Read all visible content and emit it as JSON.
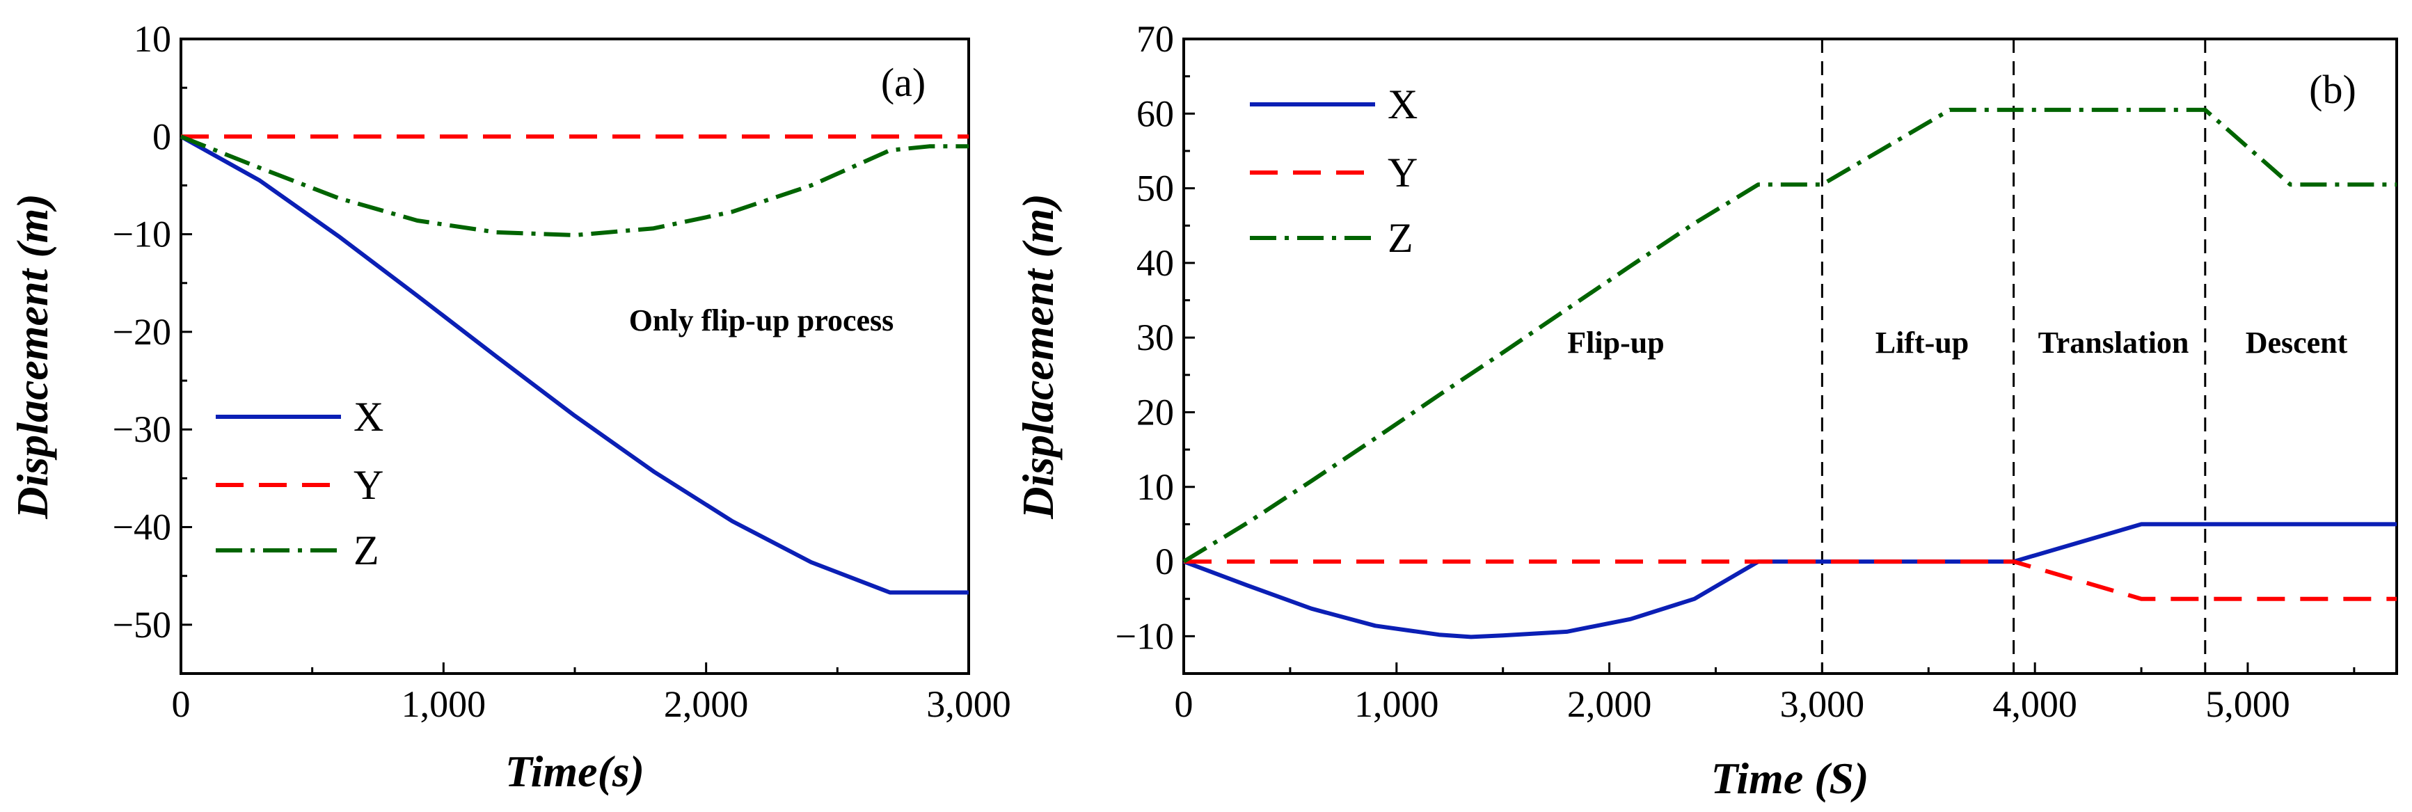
{
  "chart_data": [
    {
      "type": "line",
      "panel_label": "(a)",
      "xlabel": "Time(s)",
      "ylabel": "Displacement (m)",
      "xlim": [
        0,
        3000
      ],
      "ylim": [
        -55,
        10
      ],
      "xticks": [
        0,
        1000,
        2000,
        3000
      ],
      "xtick_labels": [
        "0",
        "1,000",
        "2,000",
        "3,000"
      ],
      "yticks": [
        10,
        0,
        -10,
        -20,
        -30,
        -40,
        -50
      ],
      "ytick_labels": [
        "10",
        "0",
        "−10",
        "−20",
        "−30",
        "−40",
        "−50"
      ],
      "legend": {
        "placement": "lower-left",
        "entries": [
          "X",
          "Y",
          "Z"
        ]
      },
      "annotations": [
        {
          "text": "Only flip-up process",
          "x": 2050,
          "y": -19
        }
      ],
      "vlines": [],
      "series": [
        {
          "name": "X",
          "color": "#0b1fb5",
          "dash": "solid",
          "x": [
            0,
            300,
            600,
            900,
            1200,
            1500,
            1800,
            2100,
            2400,
            2700,
            3000
          ],
          "y": [
            0,
            -4.5,
            -10.2,
            -16.3,
            -22.5,
            -28.6,
            -34.3,
            -39.4,
            -43.6,
            -46.7,
            -46.7
          ]
        },
        {
          "name": "Y",
          "color": "#ff0000",
          "dash": "dashed",
          "x": [
            0,
            3000
          ],
          "y": [
            0,
            0
          ]
        },
        {
          "name": "Z",
          "color": "#006400",
          "dash": "dashdot",
          "x": [
            0,
            300,
            600,
            900,
            1200,
            1500,
            1800,
            2100,
            2400,
            2700,
            2850,
            3000
          ],
          "y": [
            0,
            -3.2,
            -6.3,
            -8.6,
            -9.8,
            -10.1,
            -9.4,
            -7.7,
            -5.0,
            -1.4,
            -1.0,
            -1.0
          ]
        }
      ]
    },
    {
      "type": "line",
      "panel_label": "(b)",
      "xlabel": "Time (S)",
      "ylabel": "Displacement (m)",
      "xlim": [
        0,
        5700
      ],
      "ylim": [
        -15,
        70
      ],
      "xticks": [
        0,
        1000,
        2000,
        3000,
        4000,
        5000
      ],
      "xtick_labels": [
        "0",
        "1,000",
        "2,000",
        "3,000",
        "4,000",
        "5,000"
      ],
      "yticks": [
        70,
        60,
        50,
        40,
        30,
        20,
        10,
        0,
        -10
      ],
      "ytick_labels": [
        "70",
        "60",
        "50",
        "40",
        "30",
        "20",
        "10",
        "0",
        "−10"
      ],
      "legend": {
        "placement": "top-left",
        "entries": [
          "X",
          "Y",
          "Z"
        ]
      },
      "annotations": [
        {
          "text": "Flip-up",
          "x": 2000,
          "y": 28
        },
        {
          "text": "Lift-up",
          "x": 3450,
          "y": 28
        },
        {
          "text": "Translation",
          "x": 4370,
          "y": 28
        },
        {
          "text": "Descent",
          "x": 5250,
          "y": 28
        }
      ],
      "vlines": [
        3000,
        3900,
        4800
      ],
      "series": [
        {
          "name": "X",
          "color": "#0b1fb5",
          "dash": "solid",
          "x": [
            0,
            300,
            600,
            900,
            1200,
            1350,
            1500,
            1800,
            2100,
            2400,
            2700,
            3900,
            4500,
            5700
          ],
          "y": [
            0,
            -3.2,
            -6.3,
            -8.6,
            -9.8,
            -10.1,
            -9.9,
            -9.4,
            -7.7,
            -5.0,
            0,
            0,
            5,
            5
          ]
        },
        {
          "name": "Y",
          "color": "#ff0000",
          "dash": "dashed",
          "x": [
            0,
            3900,
            4500,
            5700
          ],
          "y": [
            0,
            0,
            -5,
            -5
          ]
        },
        {
          "name": "Z",
          "color": "#006400",
          "dash": "dashdot",
          "x": [
            0,
            300,
            600,
            900,
            1200,
            1500,
            1800,
            2100,
            2400,
            2700,
            3000,
            3600,
            3900,
            4800,
            5200,
            5700
          ],
          "y": [
            0,
            5.2,
            10.8,
            16.5,
            22.3,
            28.0,
            33.8,
            39.6,
            45.3,
            50.5,
            50.5,
            60.5,
            60.5,
            60.5,
            50.5,
            50.5
          ]
        }
      ]
    }
  ]
}
